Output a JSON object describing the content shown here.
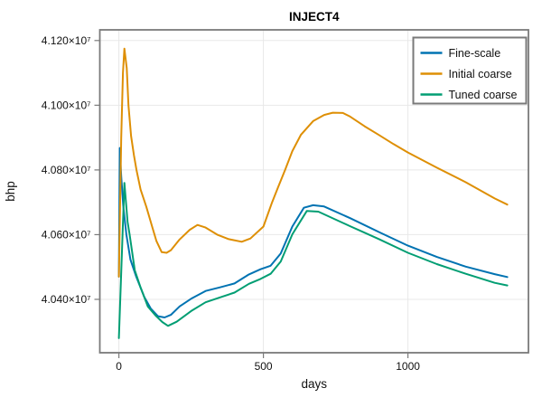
{
  "chart_data": {
    "type": "line",
    "title": "INJECT4",
    "xlabel": "days",
    "ylabel": "bhp",
    "xlim": [
      -66,
      1417
    ],
    "ylim": [
      40235000,
      41233000
    ],
    "grid": true,
    "legend_position": "top-right",
    "xticks": [
      {
        "value": 0,
        "label": "0"
      },
      {
        "value": 500,
        "label": "500"
      },
      {
        "value": 1000,
        "label": "1000"
      }
    ],
    "yticks": [
      {
        "value": 40400000,
        "label": "4.040×10⁷"
      },
      {
        "value": 40600000,
        "label": "4.060×10⁷"
      },
      {
        "value": 40800000,
        "label": "4.080×10⁷"
      },
      {
        "value": 41000000,
        "label": "4.100×10⁷"
      },
      {
        "value": 41200000,
        "label": "4.120×10⁷"
      }
    ],
    "style": {
      "background": "#ffffff",
      "grid_color": "#e8e8e8",
      "spine_color": "#7a7a7a",
      "text_color": "#111111",
      "legend_border_color": "#7a7a7a",
      "legend_background": "#ffffff"
    },
    "series": [
      {
        "name": "Fine-scale",
        "color": "#0173B2",
        "points": [
          [
            0,
            40470000
          ],
          [
            3,
            40868000
          ],
          [
            8,
            40780000
          ],
          [
            15,
            40690000
          ],
          [
            26,
            40600000
          ],
          [
            40,
            40523000
          ],
          [
            60,
            40470000
          ],
          [
            88,
            40407000
          ],
          [
            110,
            40372000
          ],
          [
            135,
            40348000
          ],
          [
            158,
            40344000
          ],
          [
            180,
            40352000
          ],
          [
            210,
            40378000
          ],
          [
            250,
            40402000
          ],
          [
            300,
            40426000
          ],
          [
            350,
            40437000
          ],
          [
            400,
            40449000
          ],
          [
            450,
            40477000
          ],
          [
            490,
            40493000
          ],
          [
            525,
            40504000
          ],
          [
            560,
            40542000
          ],
          [
            600,
            40625000
          ],
          [
            640,
            40683000
          ],
          [
            672,
            40691000
          ],
          [
            710,
            40687000
          ],
          [
            800,
            40651000
          ],
          [
            900,
            40608000
          ],
          [
            1000,
            40566000
          ],
          [
            1100,
            40531000
          ],
          [
            1200,
            40501000
          ],
          [
            1300,
            40478000
          ],
          [
            1344,
            40469000
          ]
        ]
      },
      {
        "name": "Initial coarse",
        "color": "#DE8F05",
        "points": [
          [
            0,
            40470000
          ],
          [
            8,
            40900000
          ],
          [
            14,
            41100000
          ],
          [
            19,
            41175000
          ],
          [
            27,
            41115000
          ],
          [
            33,
            41000000
          ],
          [
            42,
            40905000
          ],
          [
            52,
            40845000
          ],
          [
            61,
            40800000
          ],
          [
            75,
            40740000
          ],
          [
            95,
            40686000
          ],
          [
            115,
            40625000
          ],
          [
            130,
            40580000
          ],
          [
            148,
            40546000
          ],
          [
            165,
            40544000
          ],
          [
            180,
            40552000
          ],
          [
            210,
            40585000
          ],
          [
            245,
            40615000
          ],
          [
            272,
            40630000
          ],
          [
            300,
            40622000
          ],
          [
            340,
            40600000
          ],
          [
            380,
            40586000
          ],
          [
            425,
            40578000
          ],
          [
            455,
            40588000
          ],
          [
            500,
            40625000
          ],
          [
            530,
            40700000
          ],
          [
            550,
            40745000
          ],
          [
            575,
            40800000
          ],
          [
            600,
            40858000
          ],
          [
            630,
            40909000
          ],
          [
            672,
            40951000
          ],
          [
            710,
            40970000
          ],
          [
            740,
            40977000
          ],
          [
            775,
            40976000
          ],
          [
            800,
            40965000
          ],
          [
            850,
            40935000
          ],
          [
            900,
            40908000
          ],
          [
            950,
            40880000
          ],
          [
            1000,
            40854000
          ],
          [
            1100,
            40807000
          ],
          [
            1200,
            40762000
          ],
          [
            1300,
            40712000
          ],
          [
            1344,
            40693000
          ]
        ]
      },
      {
        "name": "Tuned coarse",
        "color": "#029E73",
        "points": [
          [
            0,
            40280000
          ],
          [
            19,
            40760000
          ],
          [
            30,
            40640000
          ],
          [
            37,
            40600000
          ],
          [
            55,
            40490000
          ],
          [
            74,
            40439000
          ],
          [
            100,
            40378000
          ],
          [
            126,
            40351000
          ],
          [
            150,
            40330000
          ],
          [
            170,
            40318000
          ],
          [
            200,
            40331000
          ],
          [
            250,
            40364000
          ],
          [
            300,
            40391000
          ],
          [
            350,
            40406000
          ],
          [
            400,
            40421000
          ],
          [
            450,
            40448000
          ],
          [
            490,
            40463000
          ],
          [
            525,
            40479000
          ],
          [
            560,
            40517000
          ],
          [
            600,
            40601000
          ],
          [
            650,
            40673000
          ],
          [
            690,
            40671000
          ],
          [
            800,
            40626000
          ],
          [
            900,
            40586000
          ],
          [
            1000,
            40544000
          ],
          [
            1100,
            40509000
          ],
          [
            1200,
            40479000
          ],
          [
            1300,
            40451000
          ],
          [
            1344,
            40443000
          ]
        ]
      }
    ]
  }
}
